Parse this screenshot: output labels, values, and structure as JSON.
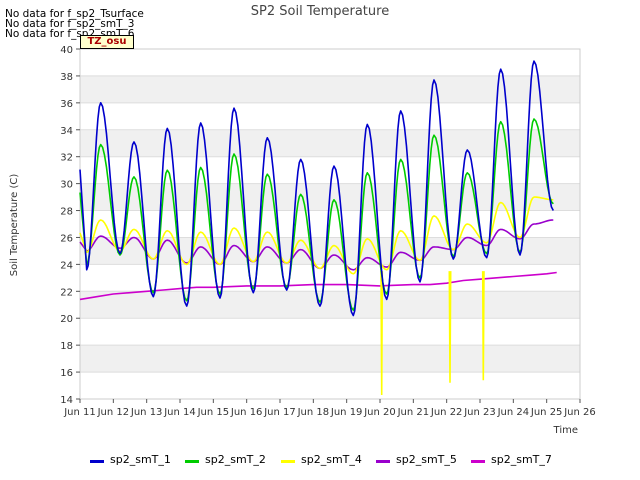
{
  "notes": [
    "No data for f_sp2_Tsurface",
    "No data for f_sp2_smT_3",
    "No data for f_sp2_smT_6"
  ],
  "tz_label": "TZ_osu",
  "chart_data": {
    "type": "line",
    "title": "SP2 Soil Temperature",
    "xlabel": "Time",
    "ylabel": "Soil Temperature (C)",
    "x_unit": "day of June",
    "xlim": [
      11,
      26
    ],
    "ylim": [
      14,
      40
    ],
    "x_ticks": [
      11,
      12,
      13,
      14,
      15,
      16,
      17,
      18,
      19,
      20,
      21,
      22,
      23,
      24,
      25,
      26
    ],
    "x_tick_labels": [
      "Jun 11",
      "Jun 12",
      "Jun 13",
      "Jun 14",
      "Jun 15",
      "Jun 16",
      "Jun 17",
      "Jun 18",
      "Jun 19",
      "Jun 20",
      "Jun 21",
      "Jun 22",
      "Jun 23",
      "Jun 24",
      "Jun 25",
      "Jun 26"
    ],
    "y_ticks": [
      14,
      16,
      18,
      20,
      22,
      24,
      26,
      28,
      30,
      32,
      34,
      36,
      38,
      40
    ],
    "grid": "horizontal bands",
    "legend": "bottom",
    "series": [
      {
        "name": "sp2_smT_1",
        "color": "#0000cc",
        "daily": [
          {
            "min": 23.6,
            "max": 36.0
          },
          {
            "min": 24.8,
            "max": 33.1
          },
          {
            "min": 21.6,
            "max": 34.1
          },
          {
            "min": 20.9,
            "max": 34.5
          },
          {
            "min": 21.5,
            "max": 35.6
          },
          {
            "min": 21.9,
            "max": 33.4
          },
          {
            "min": 22.1,
            "max": 31.8
          },
          {
            "min": 20.9,
            "max": 31.3
          },
          {
            "min": 20.2,
            "max": 34.4
          },
          {
            "min": 21.4,
            "max": 35.4
          },
          {
            "min": 22.7,
            "max": 37.7
          },
          {
            "min": 24.4,
            "max": 32.5
          },
          {
            "min": 24.5,
            "max": 38.5
          },
          {
            "min": 24.7,
            "max": 39.1
          }
        ],
        "end": 28.0
      },
      {
        "name": "sp2_smT_2",
        "color": "#00cc00",
        "daily": [
          {
            "min": 24.0,
            "max": 32.9
          },
          {
            "min": 24.7,
            "max": 30.5
          },
          {
            "min": 21.9,
            "max": 31.0
          },
          {
            "min": 21.3,
            "max": 31.2
          },
          {
            "min": 21.8,
            "max": 32.2
          },
          {
            "min": 22.2,
            "max": 30.7
          },
          {
            "min": 22.3,
            "max": 29.2
          },
          {
            "min": 21.2,
            "max": 28.8
          },
          {
            "min": 20.6,
            "max": 30.8
          },
          {
            "min": 21.8,
            "max": 31.8
          },
          {
            "min": 23.0,
            "max": 33.6
          },
          {
            "min": 24.6,
            "max": 30.8
          },
          {
            "min": 24.8,
            "max": 34.6
          },
          {
            "min": 24.9,
            "max": 34.8
          }
        ],
        "end": 28.5
      },
      {
        "name": "sp2_smT_4",
        "color": "#ffff00",
        "daily": [
          {
            "min": 24.9,
            "max": 27.3
          },
          {
            "min": 25.0,
            "max": 26.6
          },
          {
            "min": 24.4,
            "max": 26.5
          },
          {
            "min": 24.0,
            "max": 26.4
          },
          {
            "min": 24.0,
            "max": 26.7
          },
          {
            "min": 24.2,
            "max": 26.4
          },
          {
            "min": 24.1,
            "max": 25.8
          },
          {
            "min": 23.7,
            "max": 25.4
          },
          {
            "min": 23.3,
            "max": 25.9
          },
          {
            "min": 23.6,
            "max": 26.5
          },
          {
            "min": 24.3,
            "max": 27.6
          },
          {
            "min": 25.1,
            "max": 27.0
          },
          {
            "min": 25.6,
            "max": 28.6
          },
          {
            "min": 26.0,
            "max": 29.0
          }
        ],
        "end": 28.8,
        "spikes": [
          {
            "day": 20.05,
            "value": 14.3
          },
          {
            "day": 22.1,
            "value": 15.2
          },
          {
            "day": 23.1,
            "value": 15.4
          }
        ]
      },
      {
        "name": "sp2_smT_5",
        "color": "#9900cc",
        "daily": [
          {
            "min": 25.0,
            "max": 26.1
          },
          {
            "min": 25.2,
            "max": 26.0
          },
          {
            "min": 24.4,
            "max": 25.8
          },
          {
            "min": 24.1,
            "max": 25.3
          },
          {
            "min": 24.0,
            "max": 25.4
          },
          {
            "min": 24.2,
            "max": 25.3
          },
          {
            "min": 24.1,
            "max": 25.1
          },
          {
            "min": 23.7,
            "max": 24.7
          },
          {
            "min": 23.6,
            "max": 24.5
          },
          {
            "min": 23.8,
            "max": 24.9
          },
          {
            "min": 24.3,
            "max": 25.3
          },
          {
            "min": 25.1,
            "max": 26.0
          },
          {
            "min": 25.4,
            "max": 26.6
          },
          {
            "min": 25.9,
            "max": 27.0
          }
        ],
        "end": 27.3
      },
      {
        "name": "sp2_smT_7",
        "color": "#cc00cc",
        "points": [
          [
            11.0,
            21.4
          ],
          [
            11.5,
            21.6
          ],
          [
            12.0,
            21.8
          ],
          [
            12.5,
            21.9
          ],
          [
            13.0,
            22.0
          ],
          [
            13.5,
            22.1
          ],
          [
            14.0,
            22.2
          ],
          [
            14.5,
            22.3
          ],
          [
            15.0,
            22.3
          ],
          [
            16.0,
            22.4
          ],
          [
            17.0,
            22.4
          ],
          [
            18.0,
            22.5
          ],
          [
            19.0,
            22.5
          ],
          [
            20.0,
            22.4
          ],
          [
            21.0,
            22.5
          ],
          [
            21.5,
            22.5
          ],
          [
            22.0,
            22.6
          ],
          [
            22.5,
            22.8
          ],
          [
            23.0,
            22.9
          ],
          [
            23.5,
            23.0
          ],
          [
            24.0,
            23.1
          ],
          [
            24.5,
            23.2
          ],
          [
            25.0,
            23.3
          ],
          [
            25.3,
            23.4
          ]
        ]
      }
    ]
  }
}
